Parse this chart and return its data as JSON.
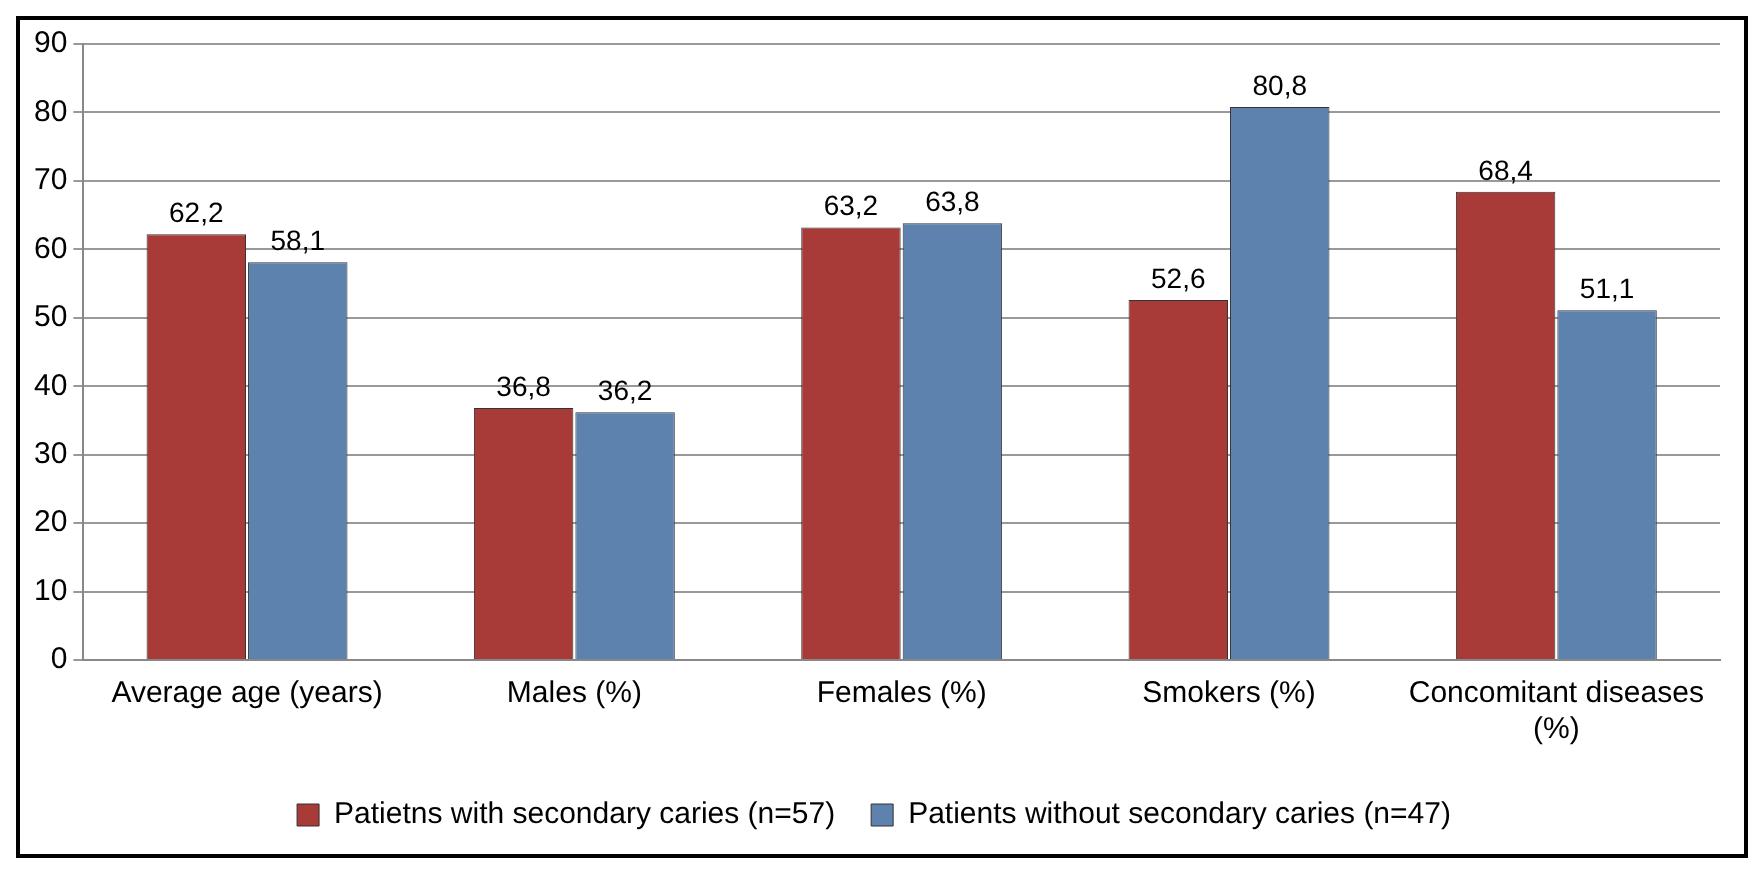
{
  "chart_data": {
    "type": "bar",
    "categories": [
      "Average age (years)",
      "Males (%)",
      "Females (%)",
      "Smokers (%)",
      "Concomitant diseases (%)"
    ],
    "series": [
      {
        "name": "Patietns with secondary caries (n=57)",
        "color": "#a83a38",
        "values": [
          62.2,
          36.8,
          63.2,
          52.6,
          68.4
        ],
        "value_labels": [
          "62,2",
          "36,8",
          "63,2",
          "52,6",
          "68,4"
        ]
      },
      {
        "name": "Patients without secondary caries (n=47)",
        "color": "#5d82ad",
        "values": [
          58.1,
          36.2,
          63.8,
          80.8,
          51.1
        ],
        "value_labels": [
          "58,1",
          "36,2",
          "63,8",
          "80,8",
          "51,1"
        ]
      }
    ],
    "ylim": [
      0,
      90
    ],
    "yticks": [
      0,
      10,
      20,
      30,
      40,
      50,
      60,
      70,
      80,
      90
    ],
    "grid": "y",
    "legend": "bottom"
  }
}
